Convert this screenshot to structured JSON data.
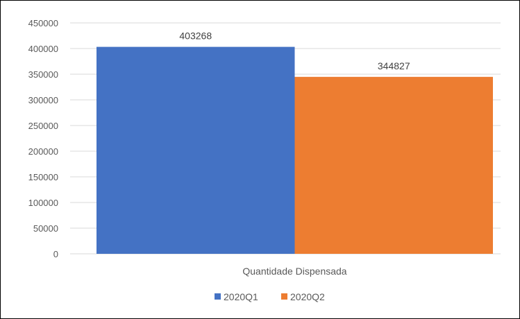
{
  "chart_data": {
    "type": "bar",
    "categories": [
      "Quantidade Dispensada"
    ],
    "series": [
      {
        "name": "2020Q1",
        "values": [
          403268
        ],
        "color": "#4472C4"
      },
      {
        "name": "2020Q2",
        "values": [
          344827
        ],
        "color": "#ED7D31"
      }
    ],
    "ylim": [
      0,
      450000
    ],
    "yticks": [
      "0",
      "50000",
      "100000",
      "150000",
      "200000",
      "250000",
      "300000",
      "350000",
      "400000",
      "450000"
    ],
    "data_labels": [
      "403268",
      "344827"
    ],
    "grid": true,
    "legend_position": "bottom"
  }
}
